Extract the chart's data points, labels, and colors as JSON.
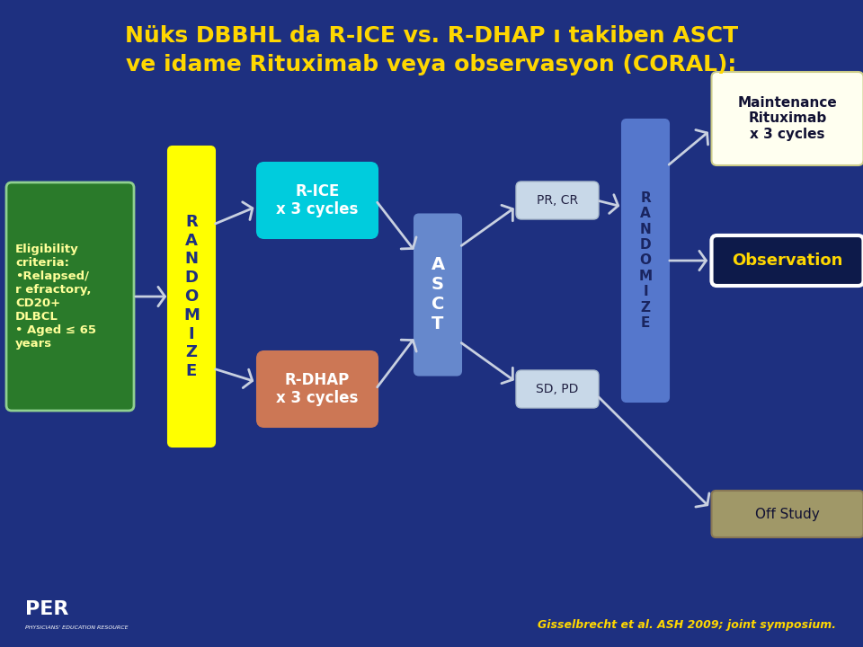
{
  "title_line1": "Nüks DBBHL da R-ICE vs. R-DHAP ı takiben ASCT",
  "title_line2": "ve idame Rituximab veya observasyon (CORAL):",
  "bg_color": "#1e3080",
  "title_color": "#FFD700",
  "footer_text": "Gisselbrecht et al. ASH 2009; joint symposium.",
  "eligibility_text": "Eligibility\ncriteria:\n•Relapsed/\nr efractory,\nCD20+\nDLBCL\n• Aged ≤ 65\nyears",
  "eligibility_bg": "#2a7a2a",
  "eligibility_text_color": "#FFFF99",
  "eligibility_border": "#90d090",
  "randomize1_text": "R\nA\nN\nD\nO\nM\nI\nZ\nE",
  "randomize1_bg": "#FFFF00",
  "randomize1_text_color": "#1e3080",
  "rice_text": "R-ICE\nx 3 cycles",
  "rice_bg": "#00CCDD",
  "rice_text_color": "white",
  "rdhap_text": "R-DHAP\nx 3 cycles",
  "rdhap_bg": "#CC7755",
  "rdhap_text_color": "white",
  "asct_text": "A\nS\nC\nT",
  "asct_bg": "#6688CC",
  "asct_text_color": "white",
  "pr_cr_text": "PR, CR",
  "pr_cr_bg": "#C8D8E8",
  "pr_cr_text_color": "#222244",
  "sd_pd_text": "SD, PD",
  "sd_pd_bg": "#C8D8E8",
  "sd_pd_text_color": "#222244",
  "randomize2_text": "R\nA\nN\nD\nO\nM\nI\nZ\nE",
  "randomize2_bg": "#5577CC",
  "randomize2_text_color": "#1a2560",
  "maintenance_text": "Maintenance\nRituximab\nx 3 cycles",
  "maintenance_bg": "#FFFFF0",
  "maintenance_text_color": "#111133",
  "observation_text": "Observation",
  "observation_bg": "#0d1a4a",
  "observation_border": "#ffffff",
  "observation_text_color": "#FFD700",
  "off_study_text": "Off Study",
  "off_study_bg": "#A09868",
  "off_study_text_color": "#111133",
  "arrow_color": "#C8D0E0"
}
